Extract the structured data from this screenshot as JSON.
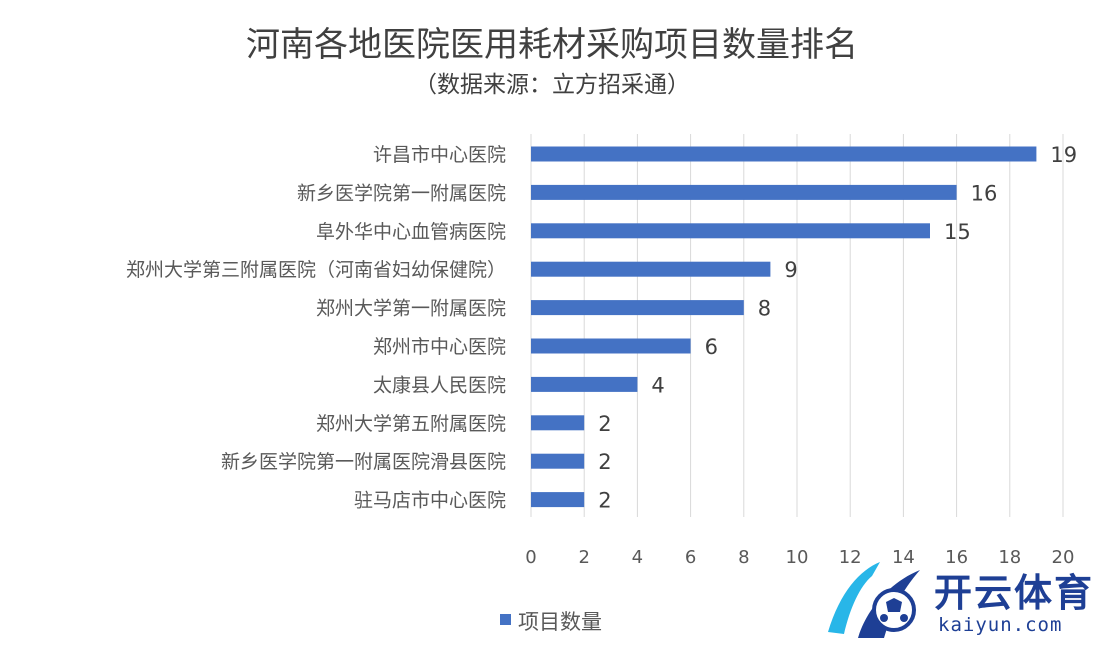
{
  "chart_data": {
    "type": "bar",
    "orientation": "horizontal",
    "title": "河南各地医院医用耗材采购项目数量排名",
    "subtitle": "（数据来源：立方招采通）",
    "categories": [
      "许昌市中心医院",
      "新乡医学院第一附属医院",
      "阜外华中心血管病医院",
      "郑州大学第三附属医院（河南省妇幼保健院）",
      "郑州大学第一附属医院",
      "郑州市中心医院",
      "太康县人民医院",
      "郑州大学第五附属医院",
      "新乡医学院第一附属医院滑县医院",
      "驻马店市中心医院"
    ],
    "series": [
      {
        "name": "项目数量",
        "values": [
          19,
          16,
          15,
          9,
          8,
          6,
          4,
          2,
          2,
          2
        ]
      }
    ],
    "xlim": [
      0,
      20
    ],
    "xticks": [
      0,
      2,
      4,
      6,
      8,
      10,
      12,
      14,
      16,
      18,
      20
    ],
    "xlabel": "",
    "ylabel": "",
    "grid": "vertical",
    "legend": "bottom-left",
    "bar_color": "#4472c4"
  },
  "watermark": {
    "text_cn": "开云体育",
    "text_en": "kaiyun.com"
  }
}
